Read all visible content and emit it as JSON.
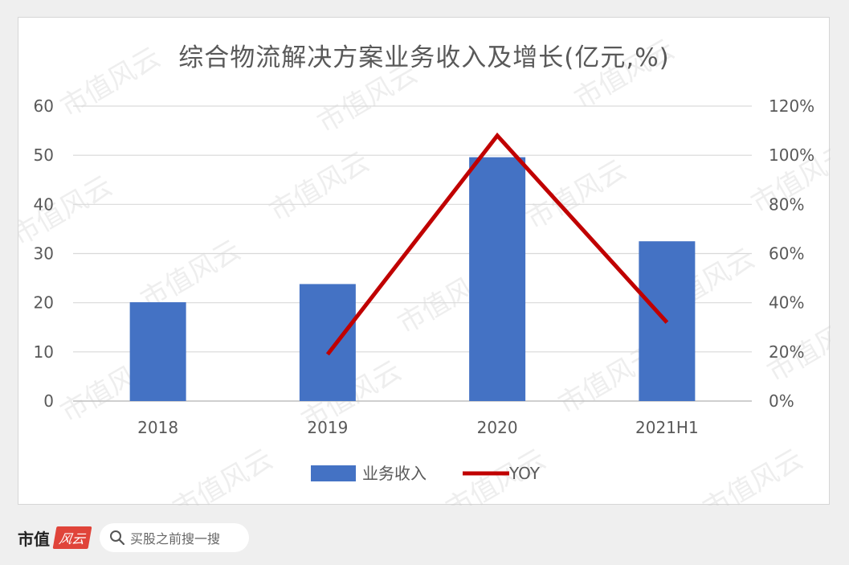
{
  "chart_data": {
    "type": "bar",
    "title": "综合物流解决方案业务收入及增长(亿元,%)",
    "categories": [
      "2018",
      "2019",
      "2020",
      "2021H1"
    ],
    "series": [
      {
        "name": "业务收入",
        "kind": "bar",
        "axis": "left",
        "color": "#4472c4",
        "values": [
          20.1,
          23.8,
          49.6,
          32.5
        ]
      },
      {
        "name": "YOY",
        "kind": "line",
        "axis": "right",
        "color": "#c00000",
        "values": [
          null,
          0.19,
          1.08,
          0.32
        ]
      }
    ],
    "left_axis": {
      "min": 0,
      "max": 60,
      "step": 10,
      "ticks": [
        "0",
        "10",
        "20",
        "30",
        "40",
        "50",
        "60"
      ]
    },
    "right_axis": {
      "min": 0,
      "max": 1.2,
      "step": 0.2,
      "ticks": [
        "0%",
        "20%",
        "40%",
        "60%",
        "80%",
        "100%",
        "120%"
      ]
    },
    "grid": true,
    "legend_position": "bottom"
  },
  "watermark": {
    "text": "市值风云"
  },
  "footer": {
    "brand": "市值",
    "logo_text": "风云",
    "search_text": "买股之前搜一搜"
  }
}
